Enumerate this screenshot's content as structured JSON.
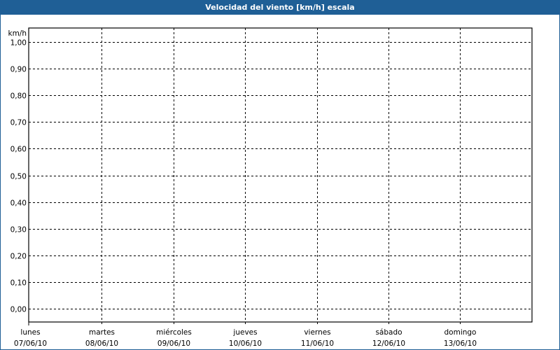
{
  "title": "Velocidad del viento [km/h] escala",
  "colors": {
    "titlebar": "#1f5f96",
    "grid": "#000000"
  },
  "chart_data": {
    "type": "line",
    "title": "Velocidad del viento [km/h] escala",
    "ylabel": "km/h",
    "xlabel": "",
    "ylim": [
      0,
      1
    ],
    "yticks": [
      "0,00",
      "0,10",
      "0,20",
      "0,30",
      "0,40",
      "0,50",
      "0,60",
      "0,70",
      "0,80",
      "0,90",
      "1,00"
    ],
    "categories": [
      {
        "day": "lunes",
        "date": "07/06/10"
      },
      {
        "day": "martes",
        "date": "08/06/10"
      },
      {
        "day": "miércoles",
        "date": "09/06/10"
      },
      {
        "day": "jueves",
        "date": "10/06/10"
      },
      {
        "day": "viernes",
        "date": "11/06/10"
      },
      {
        "day": "sábado",
        "date": "12/06/10"
      },
      {
        "day": "domingo",
        "date": "13/06/10"
      }
    ],
    "grid": true,
    "series": []
  }
}
